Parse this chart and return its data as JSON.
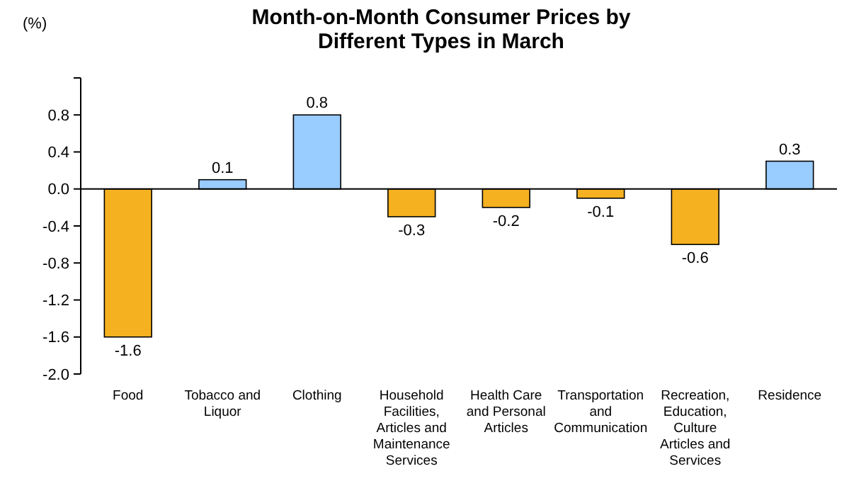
{
  "chart_data": {
    "type": "bar",
    "title": "Month-on-Month Consumer Prices by Different Types in March",
    "ylabel": "(%)",
    "categories": [
      "Food",
      "Tobacco and Liquor",
      "Clothing",
      "Household Facilities, Articles and Maintenance Services",
      "Health Care and Personal Articles",
      "Transportation and Communication",
      "Recreation, Education, Culture Articles and Services",
      "Residence"
    ],
    "values": [
      -1.6,
      0.1,
      0.8,
      -0.3,
      -0.2,
      -0.1,
      -0.6,
      0.3
    ],
    "colors": [
      "#f5b120",
      "#99ccff",
      "#99ccff",
      "#f5b120",
      "#f5b120",
      "#f5b120",
      "#f5b120",
      "#99ccff"
    ],
    "ylim": [
      -2.0,
      1.2
    ],
    "yticks": [
      {
        "value": -2.0,
        "label": "-2.0"
      },
      {
        "value": -1.6,
        "label": "-1.6"
      },
      {
        "value": -1.2,
        "label": "-1.2"
      },
      {
        "value": -0.8,
        "label": "-0.8"
      },
      {
        "value": -0.4,
        "label": "-0.4"
      },
      {
        "value": 0,
        "label": "0.0"
      },
      {
        "value": 0.4,
        "label": "0.4"
      },
      {
        "value": 0.8,
        "label": "0.8"
      },
      {
        "value": 1.2,
        "label": null
      }
    ],
    "data_labels": true
  }
}
